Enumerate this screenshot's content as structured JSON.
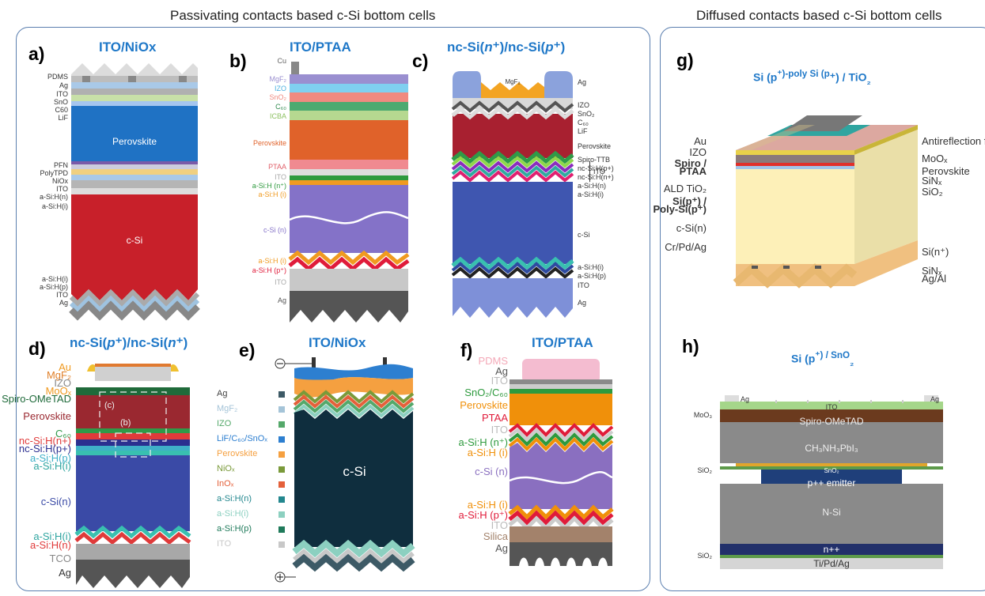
{
  "headers": {
    "left": "Passivating contacts based c-Si bottom cells",
    "right": "Diffused contacts based c-Si bottom cells"
  },
  "panels": {
    "a": {
      "letter": "a)",
      "title": "ITO/NiOx",
      "labels": [
        "PDMS",
        "Ag",
        "ITO",
        "SnO",
        "C60",
        "LiF",
        "PFN",
        "PolyTPD",
        "NiOx",
        "ITO",
        "a-Si:H(n)",
        "a-Si:H(i)",
        "a-Si:H(i)",
        "a-Si:H(p)",
        "ITO",
        "Ag"
      ],
      "perovskite": "Perovskite",
      "csi": "c-Si"
    },
    "b": {
      "letter": "b)",
      "title": "ITO/PTAA",
      "labels": [
        "Cu",
        "MgF₂",
        "IZO",
        "SnO₂",
        "C₆₀",
        "ICBA",
        "Perovskite",
        "PTAA",
        "ITO",
        "a-Si:H (n⁺)",
        "a-Si:H (i)",
        "c-Si (n)",
        "a-Si:H (i)",
        "a-Si:H (p⁺)",
        "ITO",
        "Ag"
      ]
    },
    "c": {
      "letter": "c)",
      "title_a": "nc-Si(",
      "title_b": "n",
      "title_c": "⁺)/nc-Si(",
      "title_d": "p",
      "title_e": "⁺)",
      "mgf2": "MgF₂",
      "labels": [
        "Ag",
        "IZO",
        "SnO₂",
        "C₆₀",
        "LiF",
        "Perovskite",
        "Spiro-TTB",
        "nc-Si:H(p+)",
        "nc-Si:H(n+)",
        "a-Si:H(n)",
        "a-Si:H(i)",
        "c-Si",
        "a-Si:H(i)",
        "a-Si:H(p)",
        "ITO",
        "Ag"
      ],
      "ito_brace": "ITO"
    },
    "d": {
      "letter": "d)",
      "title_a": "nc-Si(",
      "title_b": "p",
      "title_c": "⁺)/nc-Si(",
      "title_d": "n",
      "title_e": "⁺)",
      "labels": [
        "Au",
        "MgF₂",
        "IZO",
        "MoOₓ",
        "Spiro-OMeTAD",
        "Perovskite",
        "C₆₀",
        "nc-Si:H(n+)",
        "nc-Si:H(p+)",
        "a-Si:H(p)",
        "a-Si:H(i)",
        "c-Si(n)",
        "a-Si:H(i)",
        "a-Si:H(n)",
        "TCO",
        "Ag"
      ],
      "inset_c": "(c)",
      "inset_b": "(b)"
    },
    "e": {
      "letter": "e)",
      "title": "ITO/NiOx",
      "csi": "c-Si",
      "legend": [
        "Ag",
        "MgF₂",
        "IZO",
        "LiF/C₆₀/SnOₓ",
        "Perovskite",
        "NiOₓ",
        "InOₓ",
        "a-Si:H(n)",
        "a-Si:H(i)",
        "a-Si:H(p)",
        "ITO"
      ],
      "legend_colors": [
        "#3d5a66",
        "#a5c4d8",
        "#54a86a",
        "#2d7fd0",
        "#f5a040",
        "#7a9a3a",
        "#e4603a",
        "#23878e",
        "#8cd0c0",
        "#1f7a5a",
        "#c8c8c8"
      ]
    },
    "f": {
      "letter": "f)",
      "title": "ITO/PTAA",
      "labels": [
        "PDMS",
        "Ag",
        "ITO",
        "SnO₂/C₆₀",
        "Perovskite",
        "PTAA",
        "ITO",
        "a-Si:H (n⁺)",
        "a-Si:H (i)",
        "c-Si (n)",
        "a-Si:H (i)",
        "a-Si:H (p⁺)",
        "ITO",
        "Silica",
        "Ag"
      ],
      "label_colors": [
        "#f4a9b8",
        "#555",
        "#bbb",
        "#2e9a3e",
        "#f0900a",
        "#e01b3a",
        "#bbb",
        "#2e9a3e",
        "#f0900a",
        "#8a6fc0",
        "#f0900a",
        "#e01b3a",
        "#bbb",
        "#a3826b",
        "#555"
      ]
    },
    "g": {
      "letter": "g)",
      "title_a": "Si (p",
      "title_b": "⁺)-poly Si (p",
      "title_c": "⁺) / TiO",
      "title_d": "₂",
      "left_labels": [
        "Au",
        "IZO",
        "Spiro /",
        "PTAA",
        "ALD TiO₂",
        "Si(p⁺) /",
        "Poly-Si(p⁺)",
        "c-Si(n)",
        "Cr/Pd/Ag"
      ],
      "right_labels": [
        "Antireflection foil",
        "MoOₓ",
        "Perovskite",
        "SiNₓ",
        "SiO₂",
        "Si(n⁺)",
        "SiNₓ",
        "Ag/Al"
      ]
    },
    "h": {
      "letter": "h)",
      "title_a": "Si (p",
      "title_b": "⁺) / SnO",
      "title_c": "₂",
      "layers": [
        "ITO",
        "Spiro-OMeTAD",
        "CH₃NH₃PbI₃",
        "SnO₂",
        "p++ emitter",
        "N-Si",
        "n++",
        "Ti/Pd/Ag"
      ],
      "side": [
        "MoO₃",
        "SiO₂",
        "SiO₂"
      ],
      "ag": [
        "Ag",
        "Ag"
      ]
    }
  }
}
